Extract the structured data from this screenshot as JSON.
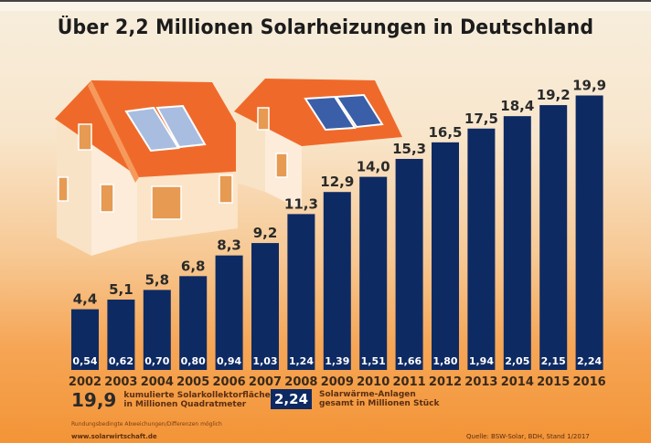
{
  "chart_data": {
    "type": "bar",
    "title": "Über 2,2 Millionen Solarheizungen in Deutschland",
    "xlabel": "",
    "ylabel": "",
    "ylim": [
      0,
      20
    ],
    "grid": false,
    "categories": [
      "2002",
      "2003",
      "2004",
      "2005",
      "2006",
      "2007",
      "2008",
      "2009",
      "2010",
      "2011",
      "2012",
      "2013",
      "2014",
      "2015",
      "2016"
    ],
    "series": [
      {
        "name": "kumulierte Solarkollektorfläche in Millionen Quadratmeter",
        "values": [
          4.4,
          5.1,
          5.8,
          6.8,
          8.3,
          9.2,
          11.3,
          12.9,
          14.0,
          15.3,
          16.5,
          17.5,
          18.4,
          19.2,
          19.9
        ],
        "labels": [
          "4,4",
          "5,1",
          "5,8",
          "6,8",
          "8,3",
          "9,2",
          "11,3",
          "12,9",
          "14,0",
          "15,3",
          "16,5",
          "17,5",
          "18,4",
          "19,2",
          "19,9"
        ]
      },
      {
        "name": "Solarwärme-Anlagen gesamt in Millionen Stück",
        "values": [
          0.54,
          0.62,
          0.7,
          0.8,
          0.94,
          1.03,
          1.24,
          1.39,
          1.51,
          1.66,
          1.8,
          1.94,
          2.05,
          2.15,
          2.24
        ],
        "labels": [
          "0,54",
          "0,62",
          "0,70",
          "0,80",
          "0,94",
          "1,03",
          "1,24",
          "1,39",
          "1,51",
          "1,66",
          "1,80",
          "1,94",
          "2,05",
          "2,15",
          "2,24"
        ]
      }
    ],
    "legend": {
      "area_value": "19,9",
      "area_text_line1": "kumulierte Solarkollektorfläche",
      "area_text_line2": "in Millionen Quadratmeter",
      "units_value": "2,24",
      "units_text_line1": "Solarwärme-Anlagen",
      "units_text_line2": "gesamt in Millionen Stück",
      "placement": "bottom"
    },
    "annotations": {
      "note": "Rundungsbedingte Abweichungen/Differenzen möglich",
      "url": "www.solarwirtschaft.de",
      "source": "Quelle: BSW-Solar, BDH, Stand 1/2017"
    }
  },
  "colors": {
    "bar": "#0e2a63",
    "roof": "#ef6a2a",
    "wall": "#fbe9d2",
    "panel_light": "#a9bde0",
    "panel_dark": "#3a5fa8"
  }
}
